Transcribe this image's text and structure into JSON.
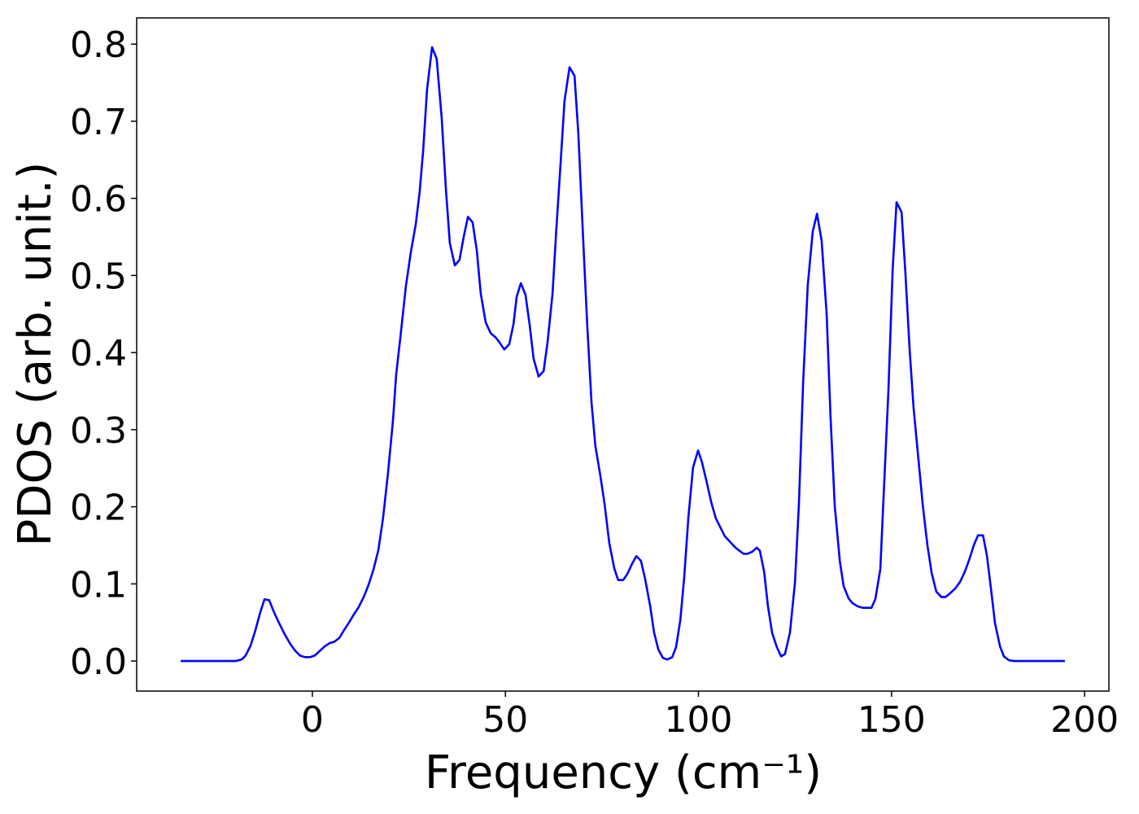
{
  "chart_data": {
    "type": "line",
    "xlabel": "Frequency (cm⁻¹)",
    "ylabel": "PDOS (arb. unit.)",
    "xlim": [
      -45.5,
      206.3
    ],
    "ylim": [
      -0.039,
      0.834
    ],
    "xticks": [
      0,
      50,
      100,
      150,
      200
    ],
    "yticks": [
      {
        "value": 0,
        "label": "0.0"
      },
      0.1,
      0.2,
      0.3,
      0.4,
      0.5,
      0.6,
      0.7,
      0.8
    ],
    "grid": false,
    "series": [
      {
        "name": "PDOS",
        "color": "#0000ff",
        "x": [
          -34.1,
          -19.8,
          -18.3,
          -17.3,
          -16.0,
          -14.8,
          -13.5,
          -12.4,
          -11.2,
          -9.9,
          -8.6,
          -7.2,
          -5.7,
          -4.4,
          -3.2,
          -1.9,
          -0.6,
          0.6,
          1.9,
          3.2,
          4.4,
          5.7,
          7.0,
          8.2,
          9.5,
          10.7,
          12.0,
          13.3,
          14.5,
          15.8,
          17.1,
          18.3,
          19.6,
          20.9,
          21.7,
          23.0,
          24.2,
          25.5,
          26.8,
          27.8,
          28.7,
          29.7,
          31.0,
          32.2,
          33.5,
          34.6,
          35.6,
          36.9,
          38.1,
          39.2,
          40.3,
          41.5,
          42.6,
          43.6,
          44.9,
          46.2,
          47.4,
          48.5,
          49.7,
          51.0,
          52.1,
          52.9,
          54.0,
          55.2,
          56.3,
          57.3,
          58.6,
          59.9,
          60.9,
          62.2,
          63.2,
          64.3,
          65.3,
          66.6,
          67.9,
          68.9,
          70.2,
          71.2,
          72.3,
          73.3,
          74.6,
          75.7,
          76.9,
          78.2,
          79.2,
          80.5,
          81.6,
          82.8,
          83.9,
          85.1,
          86.2,
          87.5,
          88.5,
          89.6,
          90.8,
          91.9,
          93.2,
          94.2,
          95.3,
          96.3,
          97.4,
          98.6,
          99.9,
          100.9,
          102.0,
          103.3,
          104.5,
          105.8,
          106.8,
          108.1,
          109.4,
          110.6,
          111.7,
          112.7,
          114.0,
          115.1,
          115.9,
          117.0,
          118.0,
          119.1,
          120.3,
          121.4,
          122.4,
          123.7,
          125.0,
          126.0,
          127.1,
          128.3,
          129.6,
          130.7,
          131.9,
          133.2,
          134.2,
          135.3,
          136.6,
          137.6,
          138.9,
          139.9,
          141.2,
          142.5,
          143.5,
          144.8,
          145.8,
          147.1,
          147.9,
          149.2,
          150.3,
          151.3,
          152.6,
          153.6,
          154.7,
          155.7,
          157.0,
          158.1,
          159.3,
          160.4,
          161.6,
          162.9,
          164.0,
          165.2,
          166.5,
          167.8,
          169.0,
          170.1,
          171.3,
          172.4,
          173.7,
          174.7,
          175.8,
          176.8,
          178.1,
          179.1,
          180.4,
          181.7,
          194.9
        ],
        "values": [
          0,
          0,
          0.002,
          0.007,
          0.02,
          0.039,
          0.063,
          0.08,
          0.079,
          0.063,
          0.049,
          0.035,
          0.022,
          0.013,
          0.007,
          0.005,
          0.005,
          0.007,
          0.013,
          0.019,
          0.023,
          0.025,
          0.03,
          0.04,
          0.05,
          0.06,
          0.07,
          0.083,
          0.098,
          0.118,
          0.144,
          0.185,
          0.244,
          0.313,
          0.371,
          0.429,
          0.485,
          0.53,
          0.567,
          0.609,
          0.662,
          0.741,
          0.796,
          0.781,
          0.704,
          0.611,
          0.542,
          0.513,
          0.52,
          0.55,
          0.576,
          0.569,
          0.532,
          0.477,
          0.439,
          0.425,
          0.42,
          0.413,
          0.404,
          0.411,
          0.437,
          0.472,
          0.49,
          0.475,
          0.435,
          0.392,
          0.369,
          0.376,
          0.413,
          0.476,
          0.561,
          0.646,
          0.726,
          0.77,
          0.759,
          0.683,
          0.54,
          0.435,
          0.335,
          0.279,
          0.24,
          0.203,
          0.153,
          0.12,
          0.105,
          0.105,
          0.113,
          0.126,
          0.136,
          0.13,
          0.106,
          0.071,
          0.037,
          0.015,
          0.004,
          0.002,
          0.005,
          0.018,
          0.053,
          0.108,
          0.187,
          0.251,
          0.273,
          0.258,
          0.235,
          0.206,
          0.185,
          0.172,
          0.162,
          0.155,
          0.148,
          0.143,
          0.139,
          0.139,
          0.142,
          0.147,
          0.143,
          0.116,
          0.071,
          0.036,
          0.018,
          0.006,
          0.009,
          0.037,
          0.102,
          0.202,
          0.36,
          0.487,
          0.557,
          0.58,
          0.545,
          0.45,
          0.317,
          0.201,
          0.13,
          0.097,
          0.081,
          0.075,
          0.071,
          0.069,
          0.069,
          0.069,
          0.08,
          0.119,
          0.208,
          0.351,
          0.508,
          0.595,
          0.582,
          0.503,
          0.403,
          0.329,
          0.26,
          0.202,
          0.15,
          0.114,
          0.09,
          0.083,
          0.083,
          0.088,
          0.094,
          0.103,
          0.116,
          0.131,
          0.15,
          0.163,
          0.163,
          0.137,
          0.092,
          0.049,
          0.019,
          0.006,
          0.001,
          0,
          0
        ]
      }
    ]
  }
}
